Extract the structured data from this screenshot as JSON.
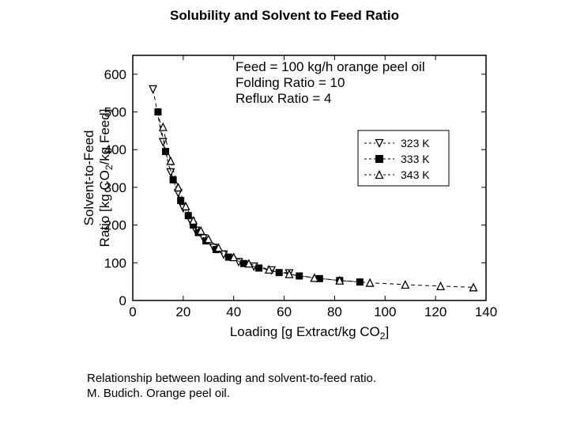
{
  "title": "Solubility and Solvent to Feed Ratio",
  "caption_line1": "Relationship between loading and solvent-to-feed ratio.",
  "caption_line2": "M. Budich. Orange peel oil.",
  "chart": {
    "type": "scatter+line",
    "background_color": "#ffffff",
    "axis_color": "#000000",
    "line_color": "#000000",
    "xlabel_pre": "Loading [g Extract/kg CO",
    "xlabel_sub": "2",
    "xlabel_post": "]",
    "ylabel_part1": "Solvent-to-Feed",
    "ylabel_part2": "Ratio [kg CO",
    "ylabel_sub": "2",
    "ylabel_post": "/kg Feed]",
    "xlim": [
      0,
      140
    ],
    "ylim": [
      0,
      650
    ],
    "xticks": [
      0,
      20,
      40,
      60,
      80,
      100,
      120,
      140
    ],
    "yticks": [
      0,
      100,
      200,
      300,
      400,
      500,
      600
    ],
    "annotations": {
      "line1": "Feed = 100 kg/h orange peel oil",
      "line2": "Folding Ratio = 10",
      "line3": "Reflux Ratio = 4"
    },
    "legend": {
      "s1": "323 K",
      "s2": "333 K",
      "s3": "343 K"
    },
    "series": [
      {
        "name": "323 K",
        "marker": "triangle-down-open",
        "marker_size": 9,
        "color": "#000000",
        "data": [
          [
            8,
            560
          ],
          [
            12,
            420
          ],
          [
            15,
            340
          ],
          [
            18,
            285
          ],
          [
            20,
            245
          ],
          [
            23,
            210
          ],
          [
            25,
            185
          ],
          [
            28,
            165
          ],
          [
            32,
            140
          ],
          [
            36,
            122
          ],
          [
            42,
            102
          ],
          [
            48,
            90
          ],
          [
            55,
            80
          ],
          [
            62,
            72
          ]
        ]
      },
      {
        "name": "333 K",
        "marker": "square-filled",
        "marker_size": 8,
        "color": "#000000",
        "data": [
          [
            10,
            500
          ],
          [
            13,
            395
          ],
          [
            16,
            320
          ],
          [
            19,
            265
          ],
          [
            22,
            225
          ],
          [
            24,
            200
          ],
          [
            26,
            180
          ],
          [
            29,
            158
          ],
          [
            33,
            135
          ],
          [
            38,
            115
          ],
          [
            44,
            98
          ],
          [
            50,
            86
          ],
          [
            58,
            74
          ],
          [
            66,
            65
          ],
          [
            74,
            58
          ],
          [
            82,
            53
          ],
          [
            90,
            49
          ]
        ]
      },
      {
        "name": "343 K",
        "marker": "triangle-up-open",
        "marker_size": 9,
        "color": "#000000",
        "data": [
          [
            12,
            460
          ],
          [
            15,
            370
          ],
          [
            18,
            300
          ],
          [
            21,
            250
          ],
          [
            24,
            212
          ],
          [
            27,
            185
          ],
          [
            30,
            163
          ],
          [
            34,
            140
          ],
          [
            40,
            115
          ],
          [
            46,
            98
          ],
          [
            54,
            82
          ],
          [
            62,
            70
          ],
          [
            72,
            60
          ],
          [
            82,
            53
          ],
          [
            94,
            47
          ],
          [
            108,
            42
          ],
          [
            122,
            38
          ],
          [
            135,
            35
          ]
        ]
      }
    ]
  }
}
